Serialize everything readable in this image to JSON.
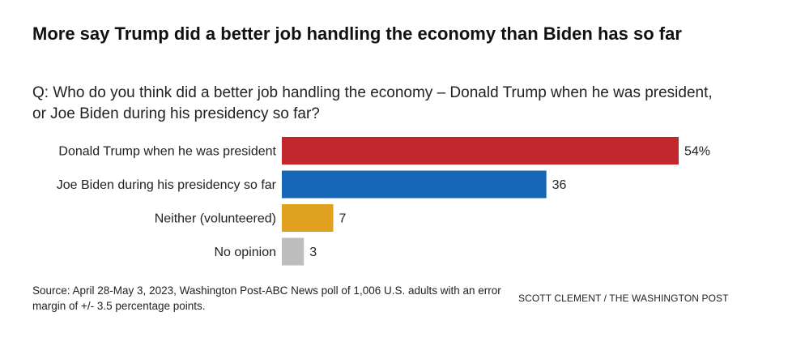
{
  "title": "More say Trump did a better job handling the economy than Biden has so far",
  "subtitle": "Q: Who do you think did a better job handling the economy – Donald Trump when he was president, or Joe Biden during his presidency so far?",
  "source": "Source: April 28-May 3, 2023, Washington Post-ABC News poll of 1,006 U.S. adults with an error margin of +/- 3.5 percentage points.",
  "credit": "SCOTT CLEMENT / THE WASHINGTON POST",
  "chart_data": {
    "type": "bar",
    "orientation": "horizontal",
    "categories": [
      "Donald Trump when he was president",
      "Joe Biden during his presidency so far",
      "Neither (volunteered)",
      "No opinion"
    ],
    "values": [
      54,
      36,
      7,
      3
    ],
    "value_labels": [
      "54%",
      "36",
      "7",
      "3"
    ],
    "colors": [
      "#c1272d",
      "#1666b8",
      "#e0a020",
      "#bdbdbd"
    ],
    "xlim": [
      0,
      54
    ],
    "grid": false,
    "legend": "none"
  }
}
